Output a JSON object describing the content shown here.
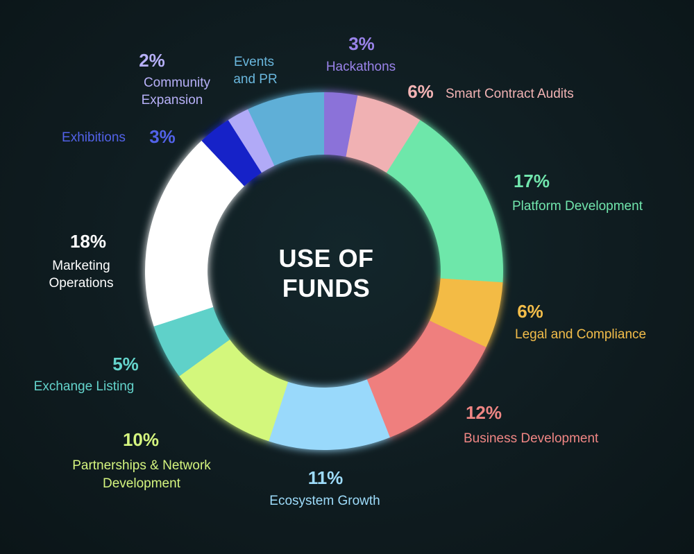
{
  "chart_data": {
    "type": "pie",
    "title": "USE OF FUNDS",
    "title_lines": [
      "USE OF",
      "FUNDS"
    ],
    "variant": "donut",
    "slices": [
      {
        "label": "Hackathons",
        "label_lines": [
          "Hackathons"
        ],
        "percent_label": "3%",
        "value": 3,
        "color": "#8b72d9"
      },
      {
        "label": "Smart Contract Audits",
        "label_lines": [
          "Smart Contract Audits"
        ],
        "percent_label": "6%",
        "value": 6,
        "color": "#f0b1b3"
      },
      {
        "label": "Platform Development",
        "label_lines": [
          "Platform Development"
        ],
        "percent_label": "17%",
        "value": 17,
        "color": "#6ee7aa"
      },
      {
        "label": "Legal and Compliance",
        "label_lines": [
          "Legal and Compliance"
        ],
        "percent_label": "6%",
        "value": 6,
        "color": "#f3bb45"
      },
      {
        "label": "Business Development",
        "label_lines": [
          "Business Development"
        ],
        "percent_label": "12%",
        "value": 12,
        "color": "#ef7f7e"
      },
      {
        "label": "Ecosystem Growth",
        "label_lines": [
          "Ecosystem Growth"
        ],
        "percent_label": "11%",
        "value": 11,
        "color": "#99d9fb"
      },
      {
        "label": "Partnerships & Network Development",
        "label_lines": [
          "Partnerships & Network",
          "Development"
        ],
        "percent_label": "10%",
        "value": 10,
        "color": "#d3f77b"
      },
      {
        "label": "Exchange Listing",
        "label_lines": [
          "Exchange Listing"
        ],
        "percent_label": "5%",
        "value": 5,
        "color": "#5fd1c9"
      },
      {
        "label": "Marketing Operations",
        "label_lines": [
          "Marketing",
          "Operations"
        ],
        "percent_label": "18%",
        "value": 18,
        "color": "#ffffff"
      },
      {
        "label": "Exhibitions",
        "label_lines": [
          "Exhibitions"
        ],
        "percent_label": "3%",
        "value": 3,
        "color": "#1420c8"
      },
      {
        "label": "Community Expansion",
        "label_lines": [
          "Community",
          "Expansion"
        ],
        "percent_label": "2%",
        "value": 2,
        "color": "#b1aaf7"
      },
      {
        "label": "Events and PR",
        "label_lines": [
          "Events",
          "and PR"
        ],
        "percent_label": "",
        "value": 7,
        "color": "#5eafd7"
      }
    ],
    "label_colors": {
      "Hackathons": "#9a83ea",
      "Smart Contract Audits": "#f2b3b4",
      "Platform Development": "#71e6ad",
      "Legal and Compliance": "#f3bd4a",
      "Business Development": "#f08684",
      "Ecosystem Growth": "#9edcfb",
      "Partnerships & Network Development": "#d5f57f",
      "Exchange Listing": "#64d4cc",
      "Marketing Operations": "#ffffff",
      "Exhibitions": "#5262e8",
      "Community Expansion": "#b7b0f8",
      "Events and PR": "#6ab7dd"
    }
  }
}
